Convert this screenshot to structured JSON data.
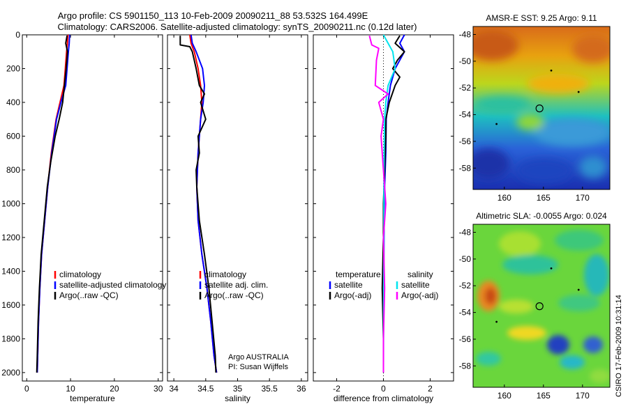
{
  "title": {
    "line1": "Argo profile: CS 5901150_113 10-Feb-2009 20090211_88 53.532S 164.499E",
    "line2": "Climatology: CARS2006. Satellite-adjusted climatology: synTS_20090211.nc (0.12d later)"
  },
  "credit": "CSIRO 17-Feb-2009 10:31:14",
  "colors": {
    "climatology": "#ff0000",
    "satellite": "#0000ff",
    "argo": "#000000",
    "sat_sal": "#00e5ee",
    "argo_sal": "#ff00ff"
  },
  "chart_data": [
    {
      "type": "line",
      "id": "temperature",
      "xlabel": "temperature",
      "xlim": [
        -1,
        31
      ],
      "ylim": [
        2050,
        0
      ],
      "xticks": [
        0,
        10,
        20,
        30
      ],
      "yticks": [
        0,
        200,
        400,
        600,
        800,
        1000,
        1200,
        1400,
        1600,
        1800,
        2000
      ],
      "legend": [
        "climatology",
        "satellite-adjusted climatology",
        "Argo(..raw -QC)"
      ],
      "series": [
        {
          "name": "climatology",
          "color": "#ff0000",
          "x": [
            9.4,
            9.3,
            9.1,
            8.8,
            8.5,
            7.6,
            6.7,
            5.6,
            4.8,
            4.1,
            3.4,
            3.0,
            2.7,
            2.5,
            2.4
          ],
          "y": [
            0,
            50,
            100,
            200,
            300,
            400,
            500,
            700,
            900,
            1100,
            1300,
            1500,
            1700,
            1900,
            2000
          ]
        },
        {
          "name": "satellite-adjusted climatology",
          "color": "#0000ff",
          "x": [
            9.8,
            9.7,
            9.5,
            9.2,
            8.9,
            7.8,
            6.8,
            5.7,
            4.8,
            4.1,
            3.4,
            3.0,
            2.7,
            2.5,
            2.4
          ],
          "y": [
            0,
            50,
            100,
            200,
            300,
            400,
            500,
            700,
            900,
            1100,
            1300,
            1500,
            1700,
            1900,
            2000
          ]
        },
        {
          "name": "Argo(..raw -QC)",
          "color": "#000000",
          "x": [
            9.2,
            8.9,
            9.3,
            9.0,
            8.6,
            8.2,
            7.4,
            6.5,
            5.5,
            4.7,
            4.0,
            3.3,
            2.9,
            2.6,
            2.4,
            2.3
          ],
          "y": [
            5,
            50,
            100,
            200,
            300,
            400,
            500,
            600,
            750,
            900,
            1100,
            1300,
            1500,
            1700,
            1900,
            2000
          ]
        }
      ]
    },
    {
      "type": "line",
      "id": "salinity",
      "xlabel": "salinity",
      "xlim": [
        33.9,
        36.1
      ],
      "ylim": [
        2050,
        0
      ],
      "xticks": [
        34,
        34.5,
        35,
        35.5,
        36
      ],
      "yticks": [
        0,
        200,
        400,
        600,
        800,
        1000,
        1200,
        1400,
        1600,
        1800,
        2000
      ],
      "legend": [
        "climatology",
        "satellite adj. clim.",
        "Argo(..raw -QC)"
      ],
      "footnote": [
        "Argo AUSTRALIA",
        "PI: Susan Wijffels"
      ],
      "series": [
        {
          "name": "climatology",
          "color": "#ff0000",
          "x": [
            34.25,
            34.27,
            34.32,
            34.38,
            34.42,
            34.44,
            34.42,
            34.38,
            34.36,
            34.38,
            34.44,
            34.52,
            34.58,
            34.63,
            34.67
          ],
          "y": [
            0,
            50,
            100,
            200,
            300,
            400,
            500,
            700,
            900,
            1100,
            1300,
            1500,
            1700,
            1900,
            2000
          ]
        },
        {
          "name": "satellite adj. clim.",
          "color": "#0000ff",
          "x": [
            34.27,
            34.29,
            34.35,
            34.45,
            34.48,
            34.46,
            34.42,
            34.38,
            34.36,
            34.38,
            34.44,
            34.52,
            34.58,
            34.63,
            34.67
          ],
          "y": [
            0,
            50,
            100,
            200,
            300,
            400,
            500,
            700,
            900,
            1100,
            1300,
            1500,
            1700,
            1900,
            2000
          ]
        },
        {
          "name": "Argo(..raw -QC)",
          "color": "#000000",
          "x": [
            34.1,
            34.1,
            34.25,
            34.29,
            34.35,
            34.4,
            34.48,
            34.42,
            34.5,
            34.38,
            34.4,
            34.35,
            34.36,
            34.4,
            34.48,
            34.55,
            34.6,
            34.65,
            34.66
          ],
          "y": [
            5,
            60,
            70,
            100,
            200,
            300,
            350,
            400,
            500,
            600,
            700,
            800,
            900,
            1100,
            1300,
            1500,
            1700,
            1900,
            2000
          ]
        }
      ]
    },
    {
      "type": "line",
      "id": "difference",
      "xlabel": "difference from climatology",
      "xlim": [
        -3,
        3
      ],
      "ylim": [
        2050,
        0
      ],
      "xticks": [
        -2,
        0,
        2
      ],
      "yticks": [
        0,
        200,
        400,
        600,
        800,
        1000,
        1200,
        1400,
        1600,
        1800,
        2000
      ],
      "legend_left_title": "temperature",
      "legend_right_title": "salinity",
      "legend_left": [
        "satellite",
        "Argo(-adj)"
      ],
      "legend_right": [
        "satellite",
        "Argo(-adj)"
      ],
      "series": [
        {
          "name": "temperature satellite",
          "color": "#0000ff",
          "x": [
            0.9,
            0.7,
            0.9,
            0.5,
            0.3,
            0.2,
            0.12,
            0.1,
            0.05,
            0.03,
            0.02,
            0.01,
            0,
            0
          ],
          "y": [
            0,
            50,
            100,
            200,
            300,
            400,
            500,
            700,
            900,
            1100,
            1300,
            1500,
            1700,
            2000
          ]
        },
        {
          "name": "temperature Argo(-adj)",
          "color": "#000000",
          "x": [
            0.7,
            0.5,
            0.9,
            0.6,
            0.4,
            0.7,
            0.5,
            0.25,
            0.1,
            0.1,
            0.05,
            0.0,
            0.0,
            -0.05,
            0.0,
            0.0
          ],
          "y": [
            5,
            50,
            100,
            150,
            200,
            250,
            300,
            400,
            500,
            600,
            800,
            1000,
            1200,
            1500,
            1800,
            2000
          ]
        },
        {
          "name": "salinity satellite",
          "color": "#00e5ee",
          "x": [
            0.0,
            0.2,
            0.4,
            0.5,
            0.2,
            0.1,
            0.05,
            0.02,
            0.02,
            0.01,
            0.0
          ],
          "y": [
            0,
            50,
            100,
            200,
            300,
            400,
            500,
            800,
            1100,
            1500,
            2000
          ]
        },
        {
          "name": "salinity Argo(-adj)",
          "color": "#ff00ff",
          "x": [
            -0.6,
            -0.5,
            -0.2,
            -0.3,
            -0.35,
            0.2,
            -0.2,
            0.0,
            -0.1,
            0.0,
            0.1,
            0.0,
            0.05,
            0.0,
            0.0
          ],
          "y": [
            5,
            60,
            80,
            150,
            300,
            350,
            400,
            500,
            600,
            800,
            1000,
            1200,
            1500,
            1800,
            2000
          ]
        }
      ]
    },
    {
      "type": "heatmap",
      "id": "sst_map",
      "title": "AMSR-E SST: 9.25 Argo: 9.11",
      "xlim": [
        156,
        173.5
      ],
      "ylim": [
        -59.6,
        -47.4
      ],
      "xticks": [
        160,
        165,
        170
      ],
      "yticks": [
        -48,
        -50,
        -52,
        -54,
        -56,
        -58
      ],
      "argo_position": [
        164.499,
        -53.532
      ]
    },
    {
      "type": "heatmap",
      "id": "sla_map",
      "title": "Altimetric SLA: -0.0055 Argo: 0.024",
      "xlim": [
        156,
        173.5
      ],
      "ylim": [
        -59.6,
        -47.4
      ],
      "xticks": [
        160,
        165,
        170
      ],
      "yticks": [
        -48,
        -50,
        -52,
        -54,
        -56,
        -58
      ],
      "argo_position": [
        164.499,
        -53.532
      ]
    }
  ]
}
